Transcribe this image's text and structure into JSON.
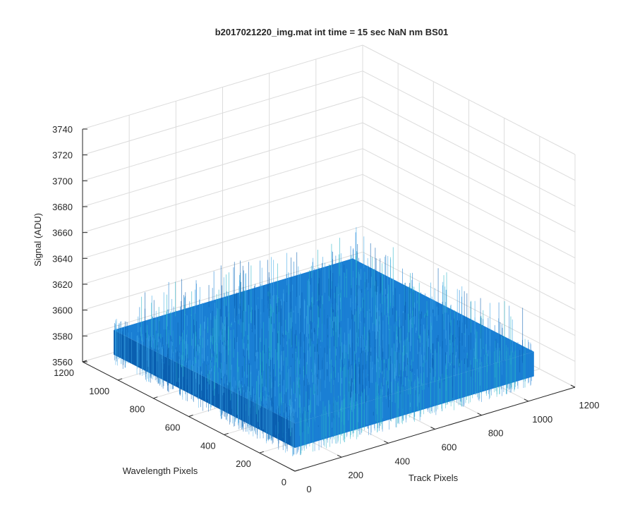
{
  "chart_data": {
    "type": "surface",
    "title": "b2017021220_img.mat int time = 15 sec  NaN nm BS01",
    "xlabel": "Track Pixels",
    "ylabel": "Wavelength Pixels",
    "zlabel": "Signal (ADU)",
    "xlim": [
      0,
      1200
    ],
    "ylim": [
      0,
      1200
    ],
    "zlim": [
      3560,
      3740
    ],
    "x_ticks": [
      "0",
      "200",
      "400",
      "600",
      "800",
      "1000",
      "1200"
    ],
    "y_ticks": [
      "0",
      "200",
      "400",
      "600",
      "800",
      "1000",
      "1200"
    ],
    "z_ticks": [
      "3560",
      "3580",
      "3600",
      "3620",
      "3640",
      "3660",
      "3680",
      "3700",
      "3720",
      "3740"
    ],
    "surface": {
      "x_extent": [
        0,
        1024
      ],
      "y_extent": [
        0,
        1024
      ],
      "mean_signal": 3597,
      "noise_range": [
        3570,
        3640
      ]
    },
    "grid": true,
    "colors": {
      "surface_main": "#1a7fd4",
      "surface_light": "#3fa9e8",
      "surface_dark": "#0a5fb0",
      "surface_highlight": "#28b4c8"
    }
  }
}
